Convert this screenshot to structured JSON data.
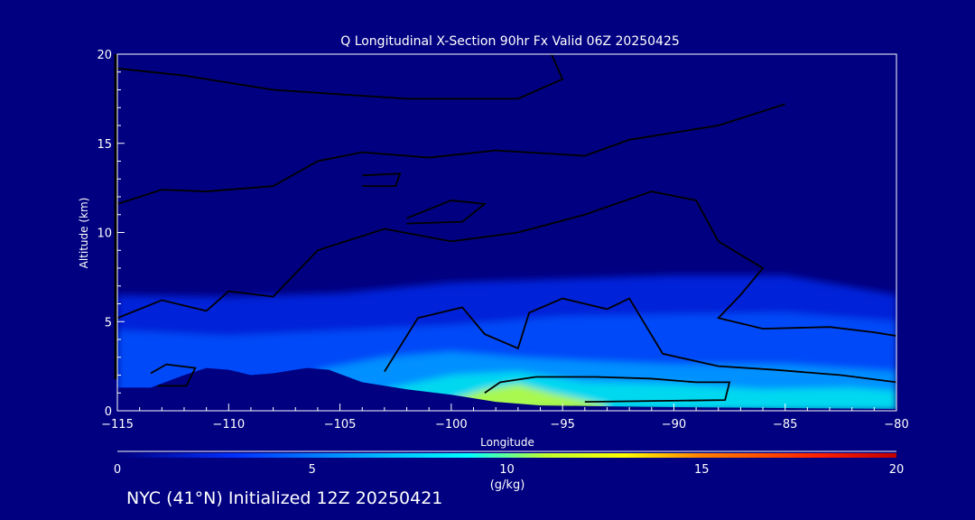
{
  "chart_data": {
    "type": "heatmap",
    "title": "Q Longitudinal X-Section 90hr  Fx Valid 06Z 20250425",
    "xlabel": "Longitude",
    "ylabel": "Altitude (km)",
    "xlim": [
      -115,
      -80
    ],
    "ylim": [
      0,
      20
    ],
    "x_ticks": [
      -115,
      -110,
      -105,
      -100,
      -95,
      -90,
      -85,
      -80
    ],
    "x_tick_labels": [
      "−115",
      "−110",
      "−105",
      "−100",
      "−95",
      "−90",
      "−85",
      "−80"
    ],
    "y_ticks": [
      0,
      5,
      10,
      15,
      20
    ],
    "y_tick_labels": [
      "0",
      "5",
      "10",
      "15",
      "20"
    ],
    "colorbar": {
      "label": "(g/kg)",
      "range": [
        0,
        20
      ],
      "ticks": [
        "0",
        "5",
        "10",
        "15",
        "20"
      ],
      "stops": [
        [
          0,
          "#000080"
        ],
        [
          3,
          "#0030ff"
        ],
        [
          7,
          "#00c0ff"
        ],
        [
          9,
          "#00ffff"
        ],
        [
          11,
          "#c0ff30"
        ],
        [
          13,
          "#ffff00"
        ],
        [
          15,
          "#ff8000"
        ],
        [
          18,
          "#ff2000"
        ],
        [
          20,
          "#c00000"
        ]
      ]
    },
    "terrain_km": {
      "lon": [
        -115,
        -113.5,
        -112,
        -111,
        -110,
        -109,
        -108,
        -106.5,
        -105.5,
        -104,
        -102,
        -100,
        -98,
        -96,
        -93,
        -90,
        -85,
        -80
      ],
      "alt": [
        1.3,
        1.3,
        2.0,
        2.4,
        2.3,
        2.0,
        2.1,
        2.4,
        2.3,
        1.6,
        1.2,
        0.9,
        0.5,
        0.3,
        0.25,
        0.2,
        0.15,
        0.1
      ]
    },
    "moisture_bands": [
      {
        "q_min": 2,
        "color": "#0020d8",
        "lon": [
          -115,
          -110,
          -105,
          -100,
          -95,
          -90,
          -85,
          -80
        ],
        "top_km": [
          6.5,
          6.4,
          6.6,
          7.2,
          7.4,
          7.6,
          7.6,
          6.5
        ]
      },
      {
        "q_min": 4,
        "color": "#0048f8",
        "lon": [
          -115,
          -110,
          -105,
          -100,
          -95,
          -90,
          -85,
          -80
        ],
        "top_km": [
          4.5,
          4.2,
          4.5,
          4.8,
          5.3,
          5.4,
          5.5,
          5.0
        ]
      },
      {
        "q_min": 6,
        "color": "#0090ff",
        "lon": [
          -106,
          -103,
          -100,
          -97,
          -94,
          -90,
          -85,
          -80
        ],
        "top_km": [
          2.3,
          3.0,
          3.3,
          3.0,
          2.8,
          2.6,
          2.6,
          2.2
        ]
      },
      {
        "q_min": 8,
        "color": "#00d8f0",
        "lon": [
          -103,
          -100,
          -97,
          -94,
          -90,
          -86,
          -82,
          -80
        ],
        "top_km": [
          1.2,
          2.0,
          2.2,
          1.6,
          1.5,
          1.2,
          1.3,
          1.1
        ]
      },
      {
        "q_min": 10,
        "color": "#a8f850",
        "lon": [
          -100,
          -98.5,
          -97,
          -95.5,
          -94,
          -93
        ],
        "top_km": [
          0.6,
          1.2,
          1.5,
          1.0,
          0.6,
          0.3
        ]
      }
    ],
    "contour_lines": [
      [
        [
          -115,
          19.2
        ],
        [
          -112,
          18.8
        ],
        [
          -108,
          18.0
        ],
        [
          -102,
          17.5
        ],
        [
          -97,
          17.5
        ],
        [
          -95,
          18.6
        ],
        [
          -95.5,
          20
        ]
      ],
      [
        [
          -115,
          11.6
        ],
        [
          -113,
          12.4
        ],
        [
          -111,
          12.3
        ],
        [
          -108,
          12.6
        ],
        [
          -106,
          14.0
        ],
        [
          -104,
          14.5
        ],
        [
          -101,
          14.2
        ],
        [
          -98,
          14.6
        ],
        [
          -94,
          14.3
        ],
        [
          -92,
          15.2
        ],
        [
          -88,
          16.0
        ],
        [
          -85,
          17.2
        ]
      ],
      [
        [
          -115,
          5.2
        ],
        [
          -113,
          6.2
        ],
        [
          -111,
          5.6
        ],
        [
          -110,
          6.7
        ],
        [
          -108,
          6.4
        ],
        [
          -106,
          9.0
        ],
        [
          -103,
          10.2
        ],
        [
          -100,
          9.5
        ],
        [
          -97,
          10.0
        ],
        [
          -94,
          11.0
        ],
        [
          -91,
          12.3
        ],
        [
          -89,
          11.8
        ],
        [
          -88,
          9.5
        ],
        [
          -86,
          8.0
        ],
        [
          -87,
          6.5
        ],
        [
          -88,
          5.2
        ],
        [
          -86,
          4.6
        ],
        [
          -83,
          4.7
        ],
        [
          -81,
          4.4
        ],
        [
          -80,
          4.2
        ]
      ],
      [
        [
          -113.5,
          2.1
        ],
        [
          -112.8,
          2.6
        ],
        [
          -111.5,
          2.4
        ],
        [
          -111.9,
          1.4
        ],
        [
          -113.2,
          1.4
        ]
      ],
      [
        [
          -103,
          2.2
        ],
        [
          -101.5,
          5.2
        ],
        [
          -99.5,
          5.8
        ],
        [
          -98.5,
          4.3
        ],
        [
          -97,
          3.5
        ],
        [
          -96.5,
          5.5
        ],
        [
          -95,
          6.3
        ],
        [
          -93,
          5.7
        ],
        [
          -92,
          6.3
        ],
        [
          -90.5,
          3.2
        ],
        [
          -88,
          2.5
        ],
        [
          -85.5,
          2.3
        ],
        [
          -82.5,
          2.0
        ],
        [
          -80,
          1.6
        ]
      ],
      [
        [
          -98.5,
          1.0
        ],
        [
          -97.8,
          1.6
        ],
        [
          -96.2,
          1.9
        ],
        [
          -93.5,
          1.9
        ],
        [
          -91,
          1.8
        ],
        [
          -89,
          1.6
        ],
        [
          -87.5,
          1.6
        ],
        [
          -87.7,
          0.6
        ],
        [
          -94,
          0.5
        ]
      ],
      [
        [
          -102,
          10.8
        ],
        [
          -100,
          11.8
        ],
        [
          -98.5,
          11.6
        ],
        [
          -99.5,
          10.6
        ],
        [
          -102,
          10.5
        ]
      ],
      [
        [
          -104,
          13.2
        ],
        [
          -102.3,
          13.3
        ],
        [
          -102.5,
          12.6
        ],
        [
          -104,
          12.6
        ]
      ]
    ]
  }
}
